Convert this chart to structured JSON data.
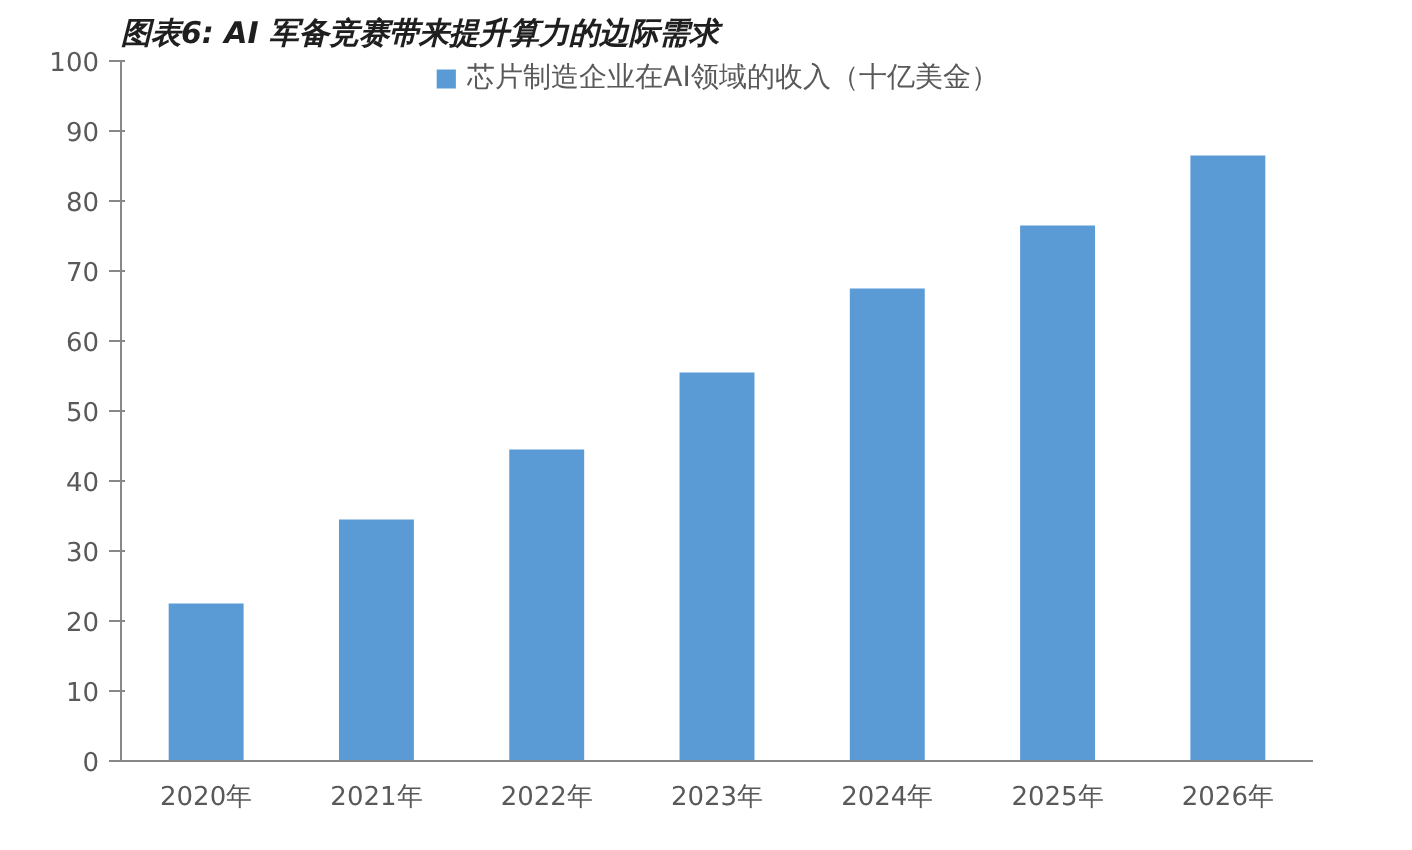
{
  "chart_data": {
    "type": "bar",
    "title": "图表6: AI 军备竞赛带来提升算力的边际需求",
    "categories": [
      "2020年",
      "2021年",
      "2022年",
      "2023年",
      "2024年",
      "2025年",
      "2026年"
    ],
    "series": [
      {
        "name": "芯片制造企业在AI领域的收入（十亿美金）",
        "color": "#5b9bd5",
        "values": [
          22.5,
          34.5,
          44.5,
          55.5,
          67.5,
          76.5,
          86.5
        ]
      }
    ],
    "ylim": [
      0,
      100
    ],
    "yticks": [
      0,
      10,
      20,
      30,
      40,
      50,
      60,
      70,
      80,
      90,
      100
    ],
    "grid": false,
    "legend": "top"
  }
}
